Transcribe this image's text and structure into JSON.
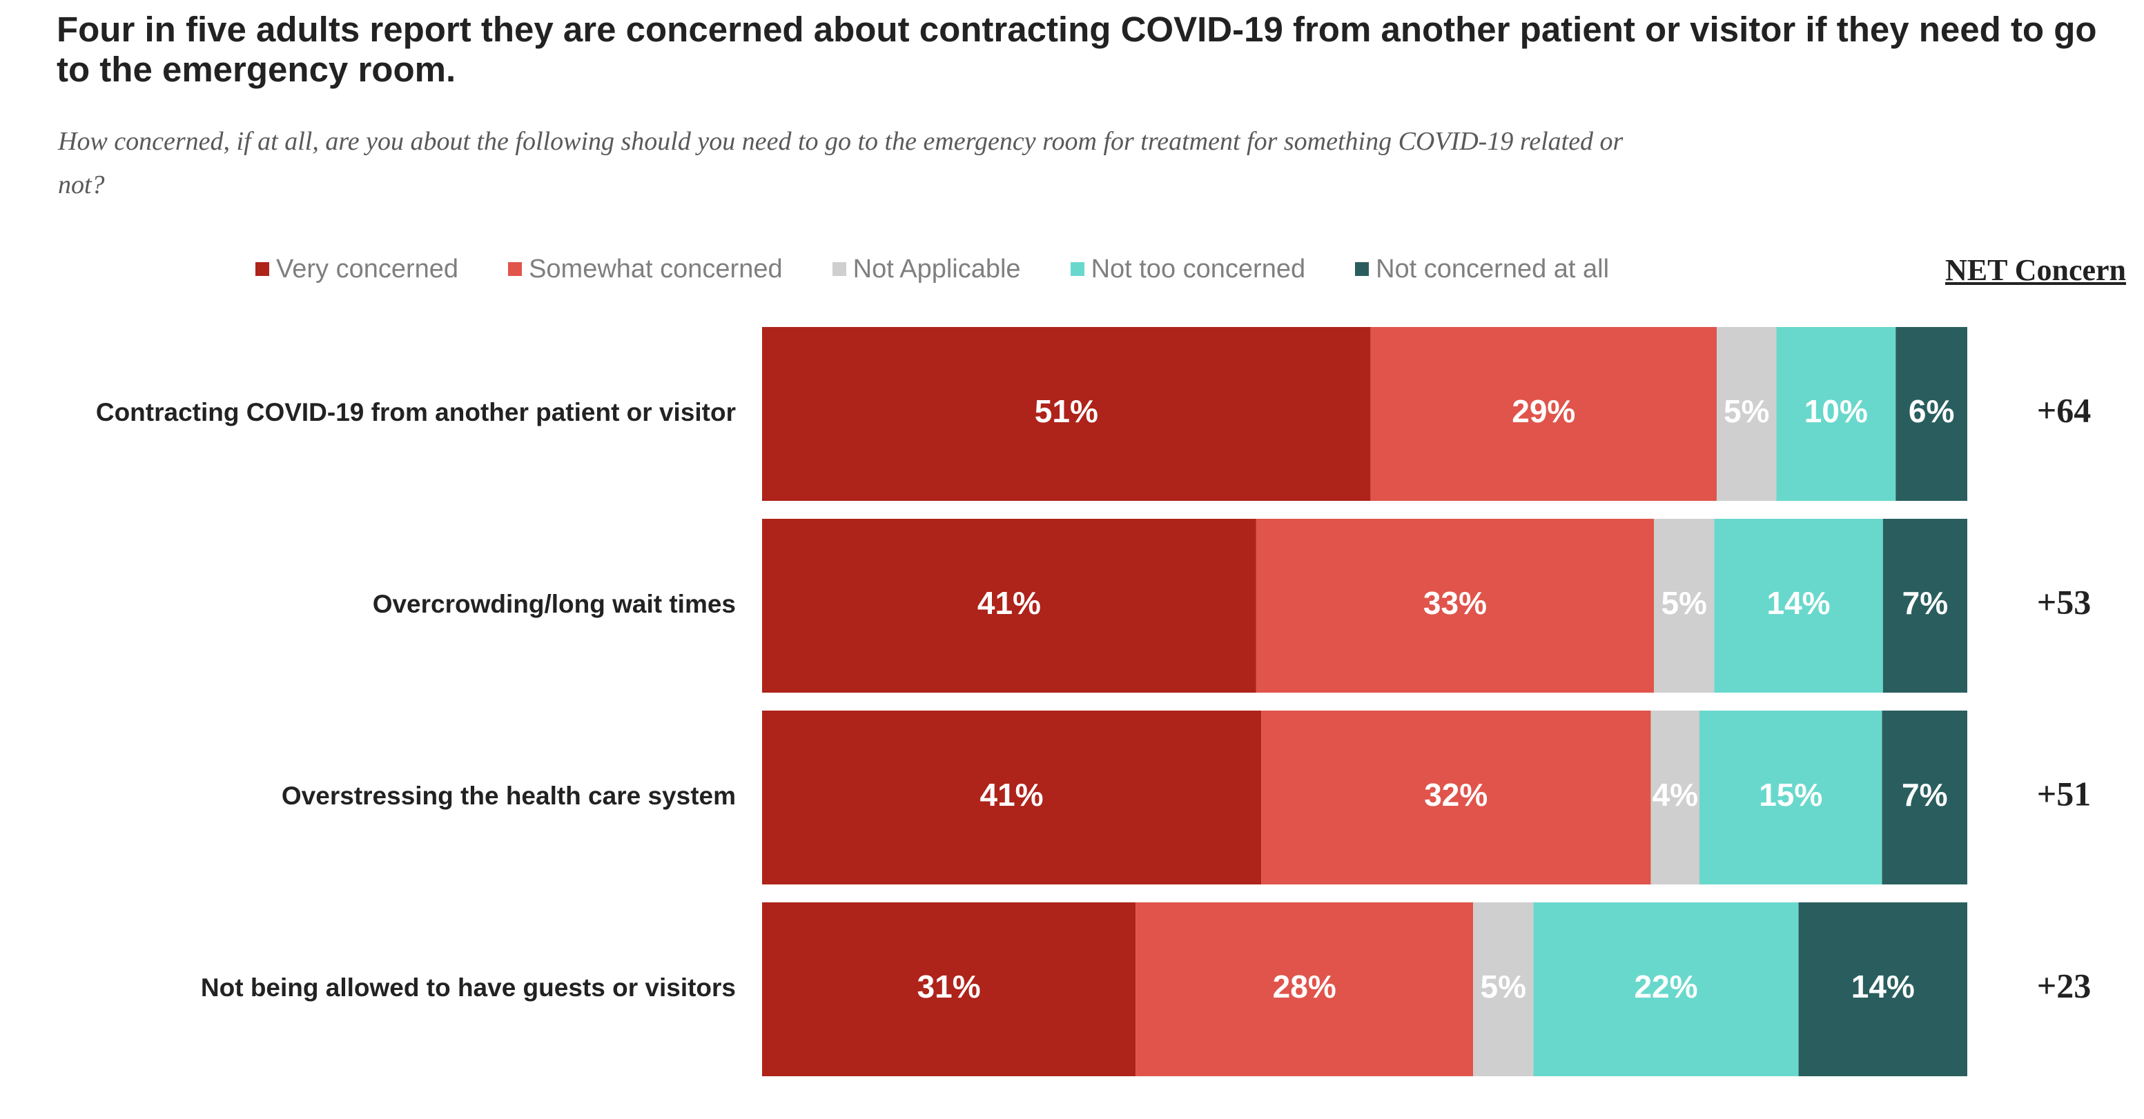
{
  "chart_data": {
    "type": "bar",
    "orientation": "horizontal",
    "stacked": true,
    "title": "Four in five adults report they are concerned about contracting COVID-19 from another patient or visitor if they need to go to the emergency room.",
    "subtitle": "How concerned, if at all, are you about the following should you need to go to the emergency room for treatment for something COVID-19 related or not?",
    "net_header": "NET Concern",
    "legend_position": "top",
    "grid": false,
    "xlim": [
      0,
      100
    ],
    "categories": [
      "Contracting COVID-19 from another patient or visitor",
      "Overcrowding/long wait times",
      "Overstressing the health care system",
      "Not being allowed to have guests or visitors"
    ],
    "series": [
      {
        "name": "Very concerned",
        "color": "#AE231A",
        "values": [
          51,
          41,
          41,
          31
        ]
      },
      {
        "name": "Somewhat concerned",
        "color": "#E0544B",
        "values": [
          29,
          33,
          32,
          28
        ]
      },
      {
        "name": "Not Applicable",
        "color": "#CFCFCF",
        "values": [
          5,
          5,
          4,
          5
        ]
      },
      {
        "name": "Not too concerned",
        "color": "#69D8CC",
        "values": [
          10,
          14,
          15,
          22
        ]
      },
      {
        "name": "Not concerned at all",
        "color": "#2A5E5E",
        "values": [
          6,
          7,
          7,
          14
        ]
      }
    ],
    "net_values": [
      "+64",
      "+53",
      "+51",
      "+23"
    ]
  }
}
